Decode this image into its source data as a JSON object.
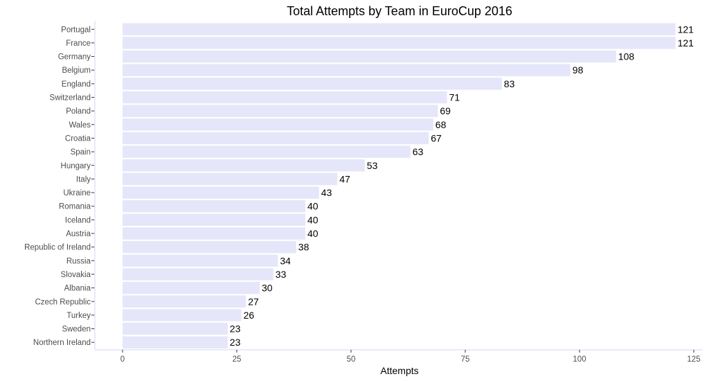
{
  "chart_data": {
    "type": "bar",
    "orientation": "horizontal",
    "title": "Total Attempts by Team in EuroCup 2016",
    "xlabel": "Attempts",
    "ylabel": "",
    "xlim": [
      0,
      125
    ],
    "x_ticks": [
      0,
      25,
      50,
      75,
      100,
      125
    ],
    "grid": false,
    "categories": [
      "Portugal",
      "France",
      "Germany",
      "Belgium",
      "England",
      "Switzerland",
      "Poland",
      "Wales",
      "Croatia",
      "Spain",
      "Hungary",
      "Italy",
      "Ukraine",
      "Romania",
      "Iceland",
      "Austria",
      "Republic of Ireland",
      "Russia",
      "Slovakia",
      "Albania",
      "Czech Republic",
      "Turkey",
      "Sweden",
      "Northern Ireland"
    ],
    "values": [
      121,
      121,
      108,
      98,
      83,
      71,
      69,
      68,
      67,
      63,
      53,
      47,
      43,
      40,
      40,
      40,
      38,
      34,
      33,
      30,
      27,
      26,
      23,
      23
    ],
    "data_labels": true
  },
  "colors": {
    "bar": "#e6e6fa",
    "axis": "#e3e3f5",
    "label": "#4d4d4d",
    "text": "#000000"
  }
}
